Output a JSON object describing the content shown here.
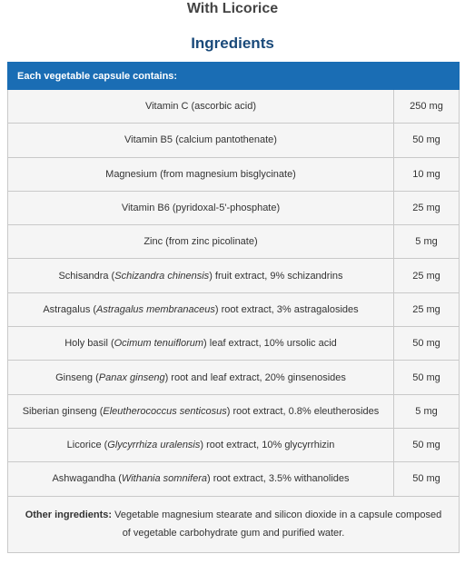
{
  "header": {
    "subtitle": "With Licorice",
    "title": "Ingredients"
  },
  "table": {
    "caption": "Each vegetable capsule contains:",
    "rows": [
      {
        "name": [
          "Vitamin C (ascorbic acid)"
        ],
        "amount": "250 mg"
      },
      {
        "name": [
          "Vitamin B5 (calcium pantothenate)"
        ],
        "amount": "50 mg"
      },
      {
        "name": [
          "Magnesium (from magnesium bisglycinate)"
        ],
        "amount": "10 mg"
      },
      {
        "name": [
          "Vitamin B6 (pyridoxal-5'-phosphate)"
        ],
        "amount": "25 mg"
      },
      {
        "name": [
          "Zinc (from zinc picolinate)"
        ],
        "amount": "5 mg"
      },
      {
        "name": [
          "Schisandra (",
          "Schizandra chinensis",
          ") fruit extract, 9% schizandrins"
        ],
        "amount": "25 mg"
      },
      {
        "name": [
          "Astragalus (",
          "Astragalus membranaceus",
          ") root extract, 3% astragalosides"
        ],
        "amount": "25 mg"
      },
      {
        "name": [
          "Holy basil (",
          "Ocimum tenuiflorum",
          ") leaf extract, 10% ursolic acid"
        ],
        "amount": "50 mg"
      },
      {
        "name": [
          "Ginseng (",
          "Panax ginseng",
          ") root and leaf extract, 20% ginsenosides"
        ],
        "amount": "50 mg"
      },
      {
        "name": [
          "Siberian ginseng (",
          "Eleutherococcus senticosus",
          ") root extract, 0.8% eleutherosides"
        ],
        "amount": "5 mg"
      },
      {
        "name": [
          "Licorice (",
          "Glycyrrhiza uralensis",
          ") root extract, 10% glycyrrhizin"
        ],
        "amount": "50 mg"
      },
      {
        "name": [
          "Ashwagandha (",
          "Withania somnifera",
          ") root extract, 3.5% withanolides"
        ],
        "amount": "50 mg"
      }
    ],
    "other_label": "Other ingredients:",
    "other_text": "Vegetable magnesium stearate and silicon dioxide in a capsule composed of vegetable carbohydrate gum and purified water."
  }
}
